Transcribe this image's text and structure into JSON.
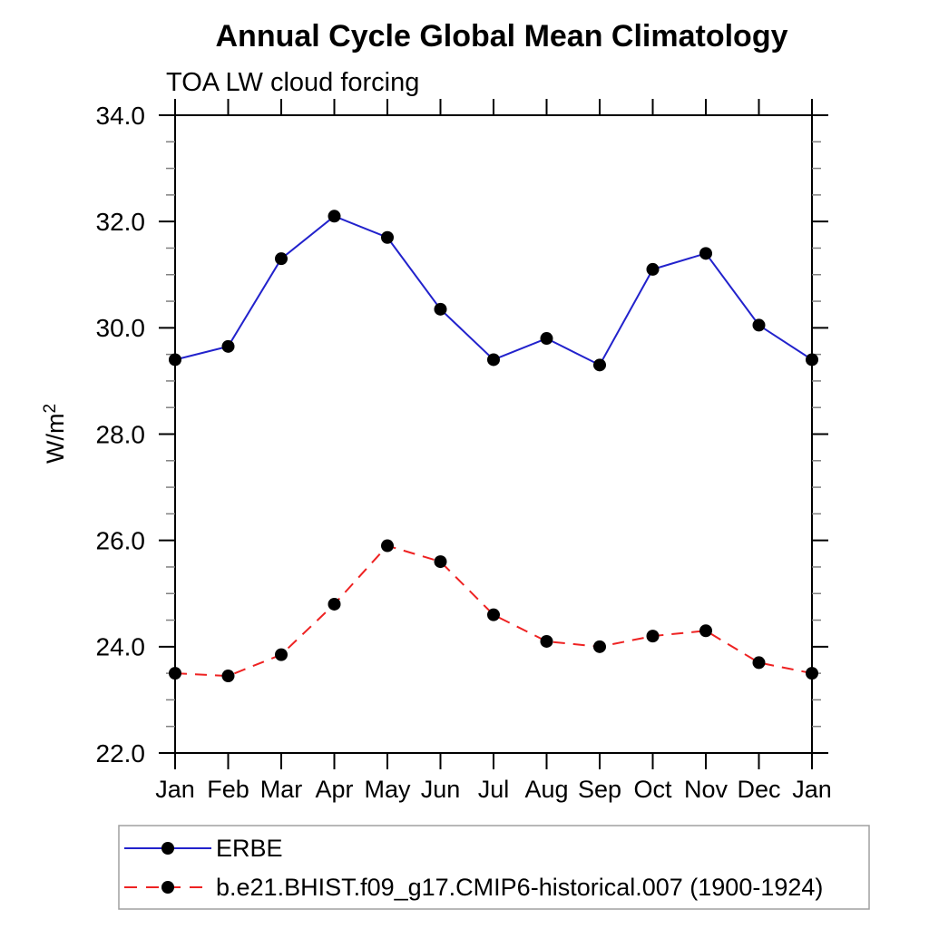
{
  "page": {
    "background": "#ffffff"
  },
  "chart_data": {
    "type": "line",
    "title": "Annual Cycle Global Mean Climatology",
    "subtitle": "TOA LW cloud forcing",
    "ylabel_base": "W/m",
    "ylabel_exponent": "2",
    "x_tick_labels": [
      "Jan",
      "Feb",
      "Mar",
      "Apr",
      "May",
      "Jun",
      "Jul",
      "Aug",
      "Sep",
      "Oct",
      "Nov",
      "Dec",
      "Jan"
    ],
    "ylim": [
      22.0,
      34.0
    ],
    "y_major_ticks": [
      22.0,
      24.0,
      26.0,
      28.0,
      30.0,
      32.0,
      34.0
    ],
    "y_tick_labels": [
      "22.0",
      "24.0",
      "26.0",
      "28.0",
      "30.0",
      "32.0",
      "34.0"
    ],
    "y_minor_step": 0.5,
    "grid": false,
    "legend_position": "bottom-left-box",
    "marker": {
      "shape": "circle",
      "color": "#000000"
    },
    "colors": {
      "axis": "#000000",
      "minor_tick": "#808080",
      "legend_border": "#a0a0a0"
    },
    "series": [
      {
        "name": "ERBE",
        "color": "#2222cc",
        "line_style": "solid",
        "values": [
          29.4,
          29.65,
          31.3,
          32.1,
          31.7,
          30.35,
          29.4,
          29.8,
          29.3,
          31.1,
          31.4,
          30.05,
          29.4
        ]
      },
      {
        "name": "b.e21.BHIST.f09_g17.CMIP6-historical.007 (1900-1924)",
        "color": "#ee2222",
        "line_style": "dashed",
        "values": [
          23.5,
          23.45,
          23.85,
          24.8,
          25.9,
          25.6,
          24.6,
          24.1,
          24.0,
          24.2,
          24.3,
          23.7,
          23.5
        ]
      }
    ]
  }
}
